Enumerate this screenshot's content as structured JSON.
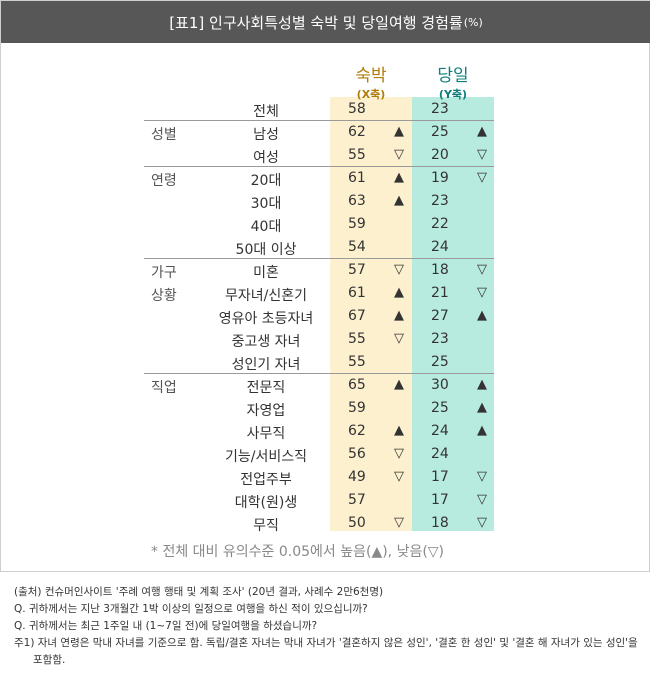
{
  "title": {
    "main": "[표1] 인구사회특성별 숙박 및 당일여행 경험률",
    "unit": "(%)"
  },
  "columns": {
    "x": {
      "name": "숙박",
      "axis": "(X축)",
      "color": "#b17d09",
      "bg": "#fdf0cf"
    },
    "y": {
      "name": "당일",
      "axis": "(Y축)",
      "color": "#0e7e7a",
      "bg": "#b8ebe0"
    }
  },
  "rows": [
    {
      "group": "",
      "label": "전체",
      "x": "58",
      "xm": "",
      "y": "23",
      "ym": ""
    },
    {
      "group": "성별",
      "label": "남성",
      "x": "62",
      "xm": "▲",
      "y": "25",
      "ym": "▲"
    },
    {
      "group": "",
      "label": "여성",
      "x": "55",
      "xm": "▽",
      "y": "20",
      "ym": "▽"
    },
    {
      "group": "연령",
      "label": "20대",
      "x": "61",
      "xm": "▲",
      "y": "19",
      "ym": "▽"
    },
    {
      "group": "",
      "label": "30대",
      "x": "63",
      "xm": "▲",
      "y": "23",
      "ym": ""
    },
    {
      "group": "",
      "label": "40대",
      "x": "59",
      "xm": "",
      "y": "22",
      "ym": ""
    },
    {
      "group": "",
      "label": "50대 이상",
      "x": "54",
      "xm": "",
      "y": "24",
      "ym": ""
    },
    {
      "group": "가구",
      "label": "미혼",
      "x": "57",
      "xm": "▽",
      "y": "18",
      "ym": "▽"
    },
    {
      "group": "상황",
      "label": "무자녀/신혼기",
      "x": "61",
      "xm": "▲",
      "y": "21",
      "ym": "▽"
    },
    {
      "group": "",
      "label": "영유아 초등자녀",
      "x": "67",
      "xm": "▲",
      "y": "27",
      "ym": "▲"
    },
    {
      "group": "",
      "label": "중고생 자녀",
      "x": "55",
      "xm": "▽",
      "y": "23",
      "ym": ""
    },
    {
      "group": "",
      "label": "성인기 자녀",
      "x": "55",
      "xm": "",
      "y": "25",
      "ym": ""
    },
    {
      "group": "직업",
      "label": "전문직",
      "x": "65",
      "xm": "▲",
      "y": "30",
      "ym": "▲"
    },
    {
      "group": "",
      "label": "자영업",
      "x": "59",
      "xm": "",
      "y": "25",
      "ym": "▲"
    },
    {
      "group": "",
      "label": "사무직",
      "x": "62",
      "xm": "▲",
      "y": "24",
      "ym": "▲"
    },
    {
      "group": "",
      "label": "기능/서비스직",
      "x": "56",
      "xm": "▽",
      "y": "24",
      "ym": ""
    },
    {
      "group": "",
      "label": "전업주부",
      "x": "49",
      "xm": "▽",
      "y": "17",
      "ym": "▽"
    },
    {
      "group": "",
      "label": "대학(원)생",
      "x": "57",
      "xm": "",
      "y": "17",
      "ym": "▽"
    },
    {
      "group": "",
      "label": "무직",
      "x": "50",
      "xm": "▽",
      "y": "18",
      "ym": "▽"
    }
  ],
  "footnote": "* 전체 대비 유의수준 0.05에서 높음(▲), 낮음(▽)",
  "notes": [
    "(출처) 컨슈머인사이트 '주례 여행 행태 및 계획 조사' (20년 결과, 사례수 2만6천명)",
    "Q. 귀하께서는 지난 3개월간 1박 이상의 일정으로 여행을 하신 적이 있으십니까?",
    "Q. 귀하께서는 최근 1주일 내 (1~7일 전)에 당일여행을 하셨습니까?",
    "주1) 자녀 연령은 막내 자녀를 기준으로 함. 독립/결혼 자녀는 막내 자녀가 '결혼하지 않은 성인', '결혼 한 성인' 및 '결혼 해 자녀가 있는 성인'을",
    "포함함."
  ]
}
